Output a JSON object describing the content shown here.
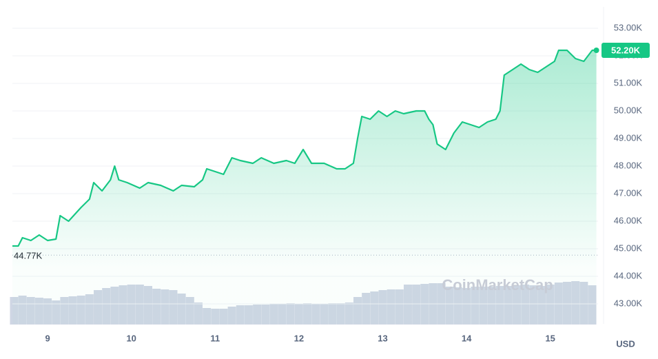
{
  "chart_data": {
    "type": "line",
    "x": [
      8.58,
      8.65,
      8.7,
      8.8,
      8.9,
      9.0,
      9.1,
      9.15,
      9.25,
      9.4,
      9.5,
      9.55,
      9.65,
      9.75,
      9.8,
      9.85,
      9.95,
      10.1,
      10.2,
      10.35,
      10.5,
      10.6,
      10.75,
      10.85,
      10.9,
      11.0,
      11.1,
      11.2,
      11.3,
      11.45,
      11.55,
      11.7,
      11.85,
      11.95,
      12.05,
      12.15,
      12.3,
      12.45,
      12.55,
      12.65,
      12.7,
      12.75,
      12.85,
      12.95,
      13.05,
      13.15,
      13.25,
      13.4,
      13.5,
      13.55,
      13.6,
      13.65,
      13.75,
      13.85,
      13.95,
      14.05,
      14.15,
      14.25,
      14.35,
      14.4,
      14.45,
      14.55,
      14.65,
      14.75,
      14.85,
      14.95,
      15.05,
      15.1,
      15.2,
      15.3,
      15.4,
      15.45,
      15.5,
      15.55
    ],
    "series": [
      {
        "name": "Price",
        "color": "#16c784",
        "values": [
          45100,
          45100,
          45400,
          45300,
          45500,
          45300,
          45350,
          46200,
          46000,
          46500,
          46800,
          47400,
          47100,
          47500,
          48000,
          47500,
          47400,
          47200,
          47400,
          47300,
          47100,
          47300,
          47250,
          47500,
          47900,
          47800,
          47700,
          48300,
          48200,
          48100,
          48300,
          48100,
          48200,
          48100,
          48600,
          48100,
          48100,
          47900,
          47900,
          48100,
          49000,
          49800,
          49700,
          50000,
          49800,
          50000,
          49900,
          50000,
          50000,
          49700,
          49500,
          48800,
          48600,
          49200,
          49600,
          49500,
          49400,
          49600,
          49700,
          50000,
          51300,
          51500,
          51700,
          51500,
          51400,
          51600,
          51800,
          52200,
          52200,
          51900,
          51800,
          52000,
          52200,
          52200
        ]
      }
    ],
    "xlim": [
      8.58,
      15.57
    ],
    "xticks": [
      9,
      10,
      11,
      12,
      13,
      14,
      15
    ],
    "ylim": [
      42275,
      53775
    ],
    "yticks": [
      {
        "value": 43000,
        "label": "43.00K"
      },
      {
        "value": 44000,
        "label": "44.00K"
      },
      {
        "value": 45000,
        "label": "45.00K"
      },
      {
        "value": 46000,
        "label": "46.00K"
      },
      {
        "value": 47000,
        "label": "47.00K"
      },
      {
        "value": 48000,
        "label": "48.00K"
      },
      {
        "value": 49000,
        "label": "49.00K"
      },
      {
        "value": 50000,
        "label": "50.00K"
      },
      {
        "value": 51000,
        "label": "51.00K"
      },
      {
        "value": 52000,
        "label": "52.00K"
      },
      {
        "value": 53000,
        "label": "53.00K"
      }
    ],
    "grid": true,
    "reference": {
      "value": 44770,
      "label": "44.77K"
    },
    "last_price": {
      "value": 52200,
      "label": "52.20K"
    },
    "currency": "USD",
    "watermark": "CoinMarketCap",
    "volume": {
      "color": "#cfd6e4",
      "vlim": [
        0,
        100
      ],
      "x": [
        8.6,
        8.7,
        8.8,
        8.9,
        9.0,
        9.1,
        9.2,
        9.3,
        9.4,
        9.5,
        9.6,
        9.7,
        9.8,
        9.9,
        10.0,
        10.1,
        10.2,
        10.3,
        10.4,
        10.5,
        10.6,
        10.7,
        10.8,
        10.9,
        11.0,
        11.1,
        11.2,
        11.3,
        11.4,
        11.5,
        11.6,
        11.7,
        11.8,
        11.9,
        12.0,
        12.1,
        12.2,
        12.3,
        12.4,
        12.5,
        12.6,
        12.7,
        12.8,
        12.9,
        13.0,
        13.1,
        13.2,
        13.3,
        13.4,
        13.5,
        13.6,
        13.7,
        13.8,
        13.9,
        14.0,
        14.1,
        14.2,
        14.3,
        14.4,
        14.5,
        14.6,
        14.7,
        14.8,
        14.9,
        15.0,
        15.1,
        15.2,
        15.3,
        15.4,
        15.5
      ],
      "values": [
        40,
        42,
        40,
        39,
        38,
        35,
        40,
        41,
        42,
        44,
        50,
        53,
        55,
        57,
        58,
        58,
        56,
        52,
        51,
        50,
        45,
        40,
        32,
        24,
        23,
        23,
        26,
        28,
        28,
        29,
        29,
        30,
        30,
        31,
        30,
        31,
        30,
        30,
        31,
        31,
        32,
        40,
        46,
        48,
        50,
        51,
        51,
        58,
        58,
        59,
        60,
        60,
        55,
        54,
        53,
        55,
        55,
        55,
        56,
        56,
        57,
        58,
        57,
        56,
        58,
        61,
        62,
        63,
        62,
        57
      ]
    }
  }
}
